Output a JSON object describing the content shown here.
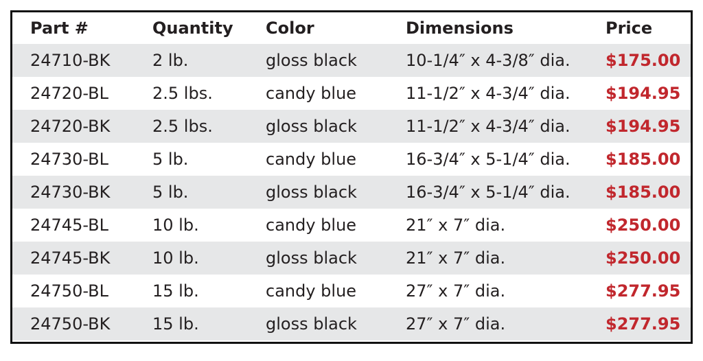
{
  "table": {
    "header": [
      "Part #",
      "Quantity",
      "Color",
      "Dimensions",
      "Price"
    ],
    "rows": [
      [
        "24710-BK",
        "2 lb.",
        "gloss black",
        "10-1/4″ x 4-3/8″ dia.",
        "$175.00"
      ],
      [
        "24720-BL",
        "2.5 lbs.",
        "candy blue",
        "11-1/2″ x 4-3/4″ dia.",
        "$194.95"
      ],
      [
        "24720-BK",
        "2.5 lbs.",
        "gloss black",
        "11-1/2″ x 4-3/4″ dia.",
        "$194.95"
      ],
      [
        "24730-BL",
        "5 lb.",
        "candy blue",
        "16-3/4″ x 5-1/4″ dia.",
        "$185.00"
      ],
      [
        "24730-BK",
        "5 lb.",
        "gloss black",
        "16-3/4″ x 5-1/4″ dia.",
        "$185.00"
      ],
      [
        "24745-BL",
        "10 lb.",
        "candy blue",
        "21″ x 7″ dia.",
        "$250.00"
      ],
      [
        "24745-BK",
        "10 lb.",
        "gloss black",
        "21″ x 7″ dia.",
        "$250.00"
      ],
      [
        "24750-BL",
        "15 lb.",
        "candy blue",
        "27″ x 7″ dia.",
        "$277.95"
      ],
      [
        "24750-BK",
        "15 lb.",
        "gloss black",
        "27″ x 7″ dia.",
        "$277.95"
      ]
    ]
  }
}
